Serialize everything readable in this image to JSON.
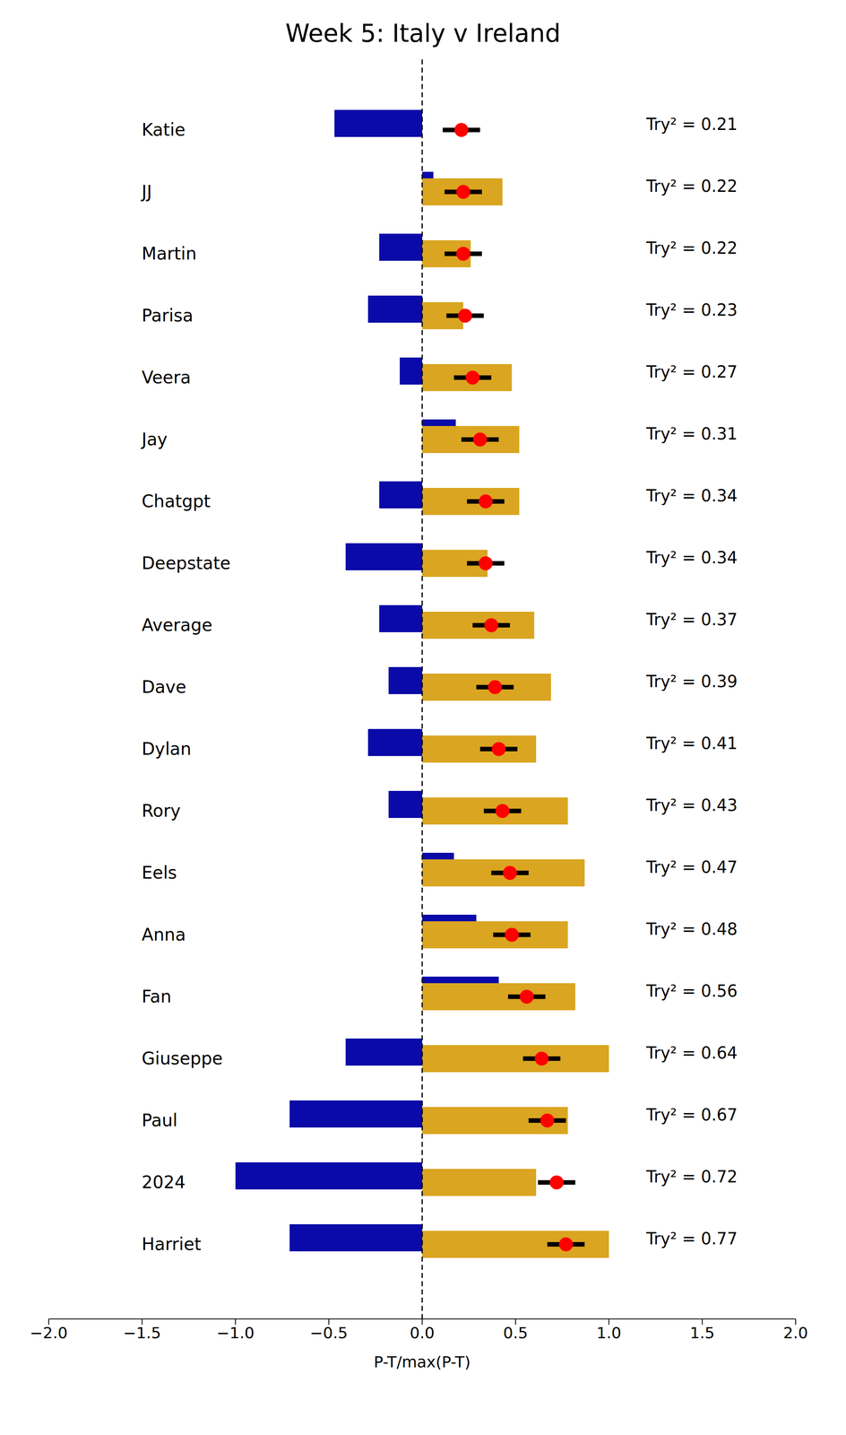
{
  "chart_data": {
    "type": "bar",
    "orientation": "horizontal",
    "title": "Week 5: Italy v Ireland",
    "x_label": "P-T/max(P-T)",
    "categories": [
      "Katie",
      "JJ",
      "Martin",
      "Parisa",
      "Veera",
      "Jay",
      "Chatgpt",
      "Deepstate",
      "Average",
      "Dave",
      "Dylan",
      "Rory",
      "Eels",
      "Anna",
      "Fan",
      "Giuseppe",
      "Paul",
      "2024",
      "Harriet"
    ],
    "xlim": [
      -2,
      2
    ],
    "xticks": [
      {
        "value": -2,
        "label": "−2.0"
      },
      {
        "value": -1.5,
        "label": "−1.5"
      },
      {
        "value": -1,
        "label": "−1.0"
      },
      {
        "value": -0.5,
        "label": "−0.5"
      },
      {
        "value": 0,
        "label": "0.0"
      },
      {
        "value": 0.5,
        "label": "0.5"
      },
      {
        "value": 1,
        "label": "1.0"
      },
      {
        "value": 1.5,
        "label": "1.5"
      },
      {
        "value": 2,
        "label": "2.0"
      }
    ],
    "data_labels": true,
    "series": [
      {
        "type": "bar",
        "color": "#0a0aa8",
        "values": [
          -0.47,
          0.06,
          -0.23,
          -0.29,
          -0.12,
          0.18,
          -0.23,
          -0.41,
          -0.23,
          -0.18,
          -0.29,
          -0.18,
          0.17,
          0.29,
          0.41,
          -0.41,
          -0.71,
          -1.0,
          -0.71
        ]
      },
      {
        "type": "bar",
        "color": "#daa520",
        "values": [
          0,
          0.43,
          0.26,
          0.22,
          0.48,
          0.52,
          0.52,
          0.35,
          0.6,
          0.69,
          0.61,
          0.78,
          0.87,
          0.78,
          0.82,
          1.0,
          0.78,
          0.61,
          1.0
        ]
      },
      {
        "type": "scatter",
        "marker": "circle",
        "color": "#ff0000",
        "values": [
          0.21,
          0.22,
          0.22,
          0.23,
          0.27,
          0.31,
          0.34,
          0.34,
          0.37,
          0.39,
          0.41,
          0.43,
          0.47,
          0.48,
          0.56,
          0.64,
          0.67,
          0.72,
          0.77
        ],
        "errors": [
          0.1,
          0.1,
          0.1,
          0.1,
          0.1,
          0.1,
          0.1,
          0.1,
          0.1,
          0.1,
          0.1,
          0.1,
          0.1,
          0.1,
          0.1,
          0.1,
          0.1,
          0.1,
          0.1
        ],
        "value_labels": [
          "Try² = 0.21",
          "Try² = 0.22",
          "Try² = 0.22",
          "Try² = 0.23",
          "Try² = 0.27",
          "Try² = 0.31",
          "Try² = 0.34",
          "Try² = 0.34",
          "Try² = 0.37",
          "Try² = 0.39",
          "Try² = 0.41",
          "Try² = 0.43",
          "Try² = 0.47",
          "Try² = 0.48",
          "Try² = 0.56",
          "Try² = 0.64",
          "Try² = 0.67",
          "Try² = 0.72",
          "Try² = 0.77"
        ]
      }
    ]
  }
}
